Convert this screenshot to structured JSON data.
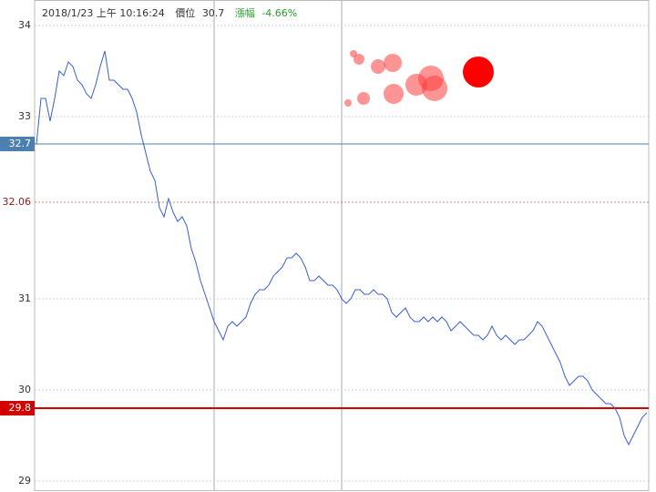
{
  "chart_data": {
    "type": "line",
    "header": {
      "time": "2018/1/23 上午 10:16:24",
      "price_label": "價位",
      "price": "30.7",
      "change_label": "漲幅",
      "change": "-4.66%"
    },
    "ylim": [
      28.9,
      34.28
    ],
    "yticks": [
      29,
      30,
      31,
      33,
      34
    ],
    "grid": true,
    "series": [
      {
        "color": "#3a5fcd",
        "values": [
          32.7,
          33.2,
          33.2,
          32.95,
          33.2,
          33.5,
          33.45,
          33.6,
          33.55,
          33.4,
          33.35,
          33.25,
          33.2,
          33.35,
          33.55,
          33.72,
          33.4,
          33.4,
          33.35,
          33.3,
          33.3,
          33.2,
          33.05,
          32.8,
          32.6,
          32.4,
          32.3,
          32.0,
          31.9,
          32.1,
          31.95,
          31.85,
          31.9,
          31.8,
          31.55,
          31.4,
          31.2,
          31.05,
          30.9,
          30.75,
          30.65,
          30.55,
          30.7,
          30.75,
          30.7,
          30.75,
          30.8,
          30.95,
          31.05,
          31.1,
          31.1,
          31.15,
          31.25,
          31.3,
          31.35,
          31.45,
          31.45,
          31.5,
          31.45,
          31.35,
          31.2,
          31.2,
          31.25,
          31.2,
          31.15,
          31.15,
          31.1,
          31.0,
          30.95,
          31.0,
          31.1,
          31.1,
          31.05,
          31.05,
          31.1,
          31.05,
          31.05,
          31.0,
          30.85,
          30.8,
          30.85,
          30.9,
          30.8,
          30.75,
          30.75,
          30.8,
          30.75,
          30.8,
          30.75,
          30.8,
          30.75,
          30.65,
          30.7,
          30.75,
          30.7,
          30.65,
          30.6,
          30.6,
          30.55,
          30.6,
          30.7,
          30.6,
          30.55,
          30.6,
          30.55,
          30.5,
          30.55,
          30.55,
          30.6,
          30.65,
          30.75,
          30.7,
          30.6,
          30.5,
          30.4,
          30.3,
          30.15,
          30.05,
          30.1,
          30.15,
          30.15,
          30.1,
          30.0,
          29.95,
          29.9,
          29.85,
          29.85,
          29.8,
          29.7,
          29.5,
          29.4,
          29.5,
          29.6,
          29.7,
          29.75
        ]
      }
    ],
    "bubbles": {
      "x": [
        69.6,
        70.8,
        75,
        78.2,
        68.4,
        71.8,
        78.4,
        83.4,
        86.6,
        87.4,
        97
      ],
      "y": [
        33.69,
        33.63,
        33.55,
        33.59,
        33.15,
        33.2,
        33.25,
        33.35,
        33.42,
        33.31,
        33.49
      ],
      "sizes": [
        4,
        6,
        8,
        10,
        4,
        7,
        11,
        12,
        14,
        14,
        17
      ],
      "colors": [
        "rgba(255,60,60,0.55)",
        "rgba(255,60,60,0.55)",
        "rgba(255,60,60,0.55)",
        "rgba(255,60,60,0.55)",
        "rgba(255,60,60,0.55)",
        "rgba(255,60,60,0.55)",
        "rgba(255,60,60,0.55)",
        "rgba(255,60,60,0.55)",
        "rgba(255,60,60,0.55)",
        "rgba(255,60,60,0.55)",
        "#ff0000"
      ]
    },
    "reference_lines": [
      {
        "value": 32.7,
        "color": "#4a7fb0"
      },
      {
        "value": 32.06,
        "color": "#8b1a1a"
      },
      {
        "value": 29.8,
        "color": "#d40000"
      }
    ]
  }
}
